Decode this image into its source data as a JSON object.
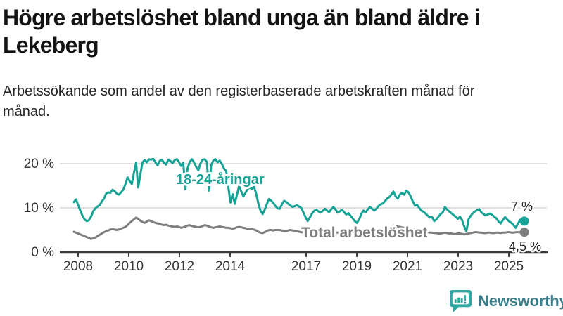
{
  "header": {
    "title": "Högre arbetslöshet bland unga än bland äldre i Lekeberg",
    "subtitle": "Arbetssökande som andel av den registerbaserade arbetskraften månad för månad."
  },
  "chart_data": {
    "type": "line",
    "unit": "percent of registered labour force",
    "frequency": "monthly",
    "x_start": "2008-01",
    "x_end": "2025-07",
    "ylim": [
      0,
      22
    ],
    "grid": "horizontal",
    "legend": "inline-labels",
    "yticks": [
      {
        "value": 0,
        "label": "0 %"
      },
      {
        "value": 10,
        "label": "10 %"
      },
      {
        "value": 20,
        "label": "20 %"
      }
    ],
    "xticks": [
      {
        "year": 2008,
        "label": "2008"
      },
      {
        "year": 2010,
        "label": "2010"
      },
      {
        "year": 2012,
        "label": "2012"
      },
      {
        "year": 2014,
        "label": "2014"
      },
      {
        "year": 2017,
        "label": "2017"
      },
      {
        "year": 2019,
        "label": "2019"
      },
      {
        "year": 2021,
        "label": "2021"
      },
      {
        "year": 2023,
        "label": "2023"
      },
      {
        "year": 2025,
        "label": "2025"
      }
    ],
    "series": [
      {
        "id": "young",
        "name": "18-24-åringar",
        "color": "#16a295",
        "end_label": "7 %",
        "end_value": 7.0,
        "values": [
          11.3,
          11.9,
          10.6,
          9.4,
          8.2,
          7.4,
          7.0,
          7.2,
          8.0,
          9.2,
          9.9,
          10.3,
          10.6,
          11.4,
          12.1,
          13.2,
          13.5,
          13.4,
          14.1,
          13.8,
          13.2,
          13.0,
          13.5,
          14.1,
          15.3,
          16.9,
          16.1,
          15.4,
          17.9,
          20.2,
          14.6,
          17.6,
          20.3,
          20.8,
          20.3,
          21.0,
          20.9,
          21.1,
          20.3,
          19.6,
          20.6,
          20.9,
          20.2,
          19.8,
          20.9,
          20.6,
          20.1,
          20.8,
          21.0,
          20.4,
          19.5,
          20.2,
          14.2,
          18.9,
          20.4,
          21.0,
          20.3,
          19.3,
          18.5,
          20.0,
          20.9,
          21.0,
          20.4,
          13.9,
          19.6,
          20.7,
          21.0,
          20.3,
          20.7,
          19.9,
          18.9,
          18.4,
          14.8,
          11.2,
          13.1,
          10.9,
          12.9,
          14.9,
          13.8,
          12.6,
          13.4,
          14.2,
          14.6,
          14.3,
          14.8,
          13.2,
          11.0,
          9.4,
          8.6,
          9.6,
          10.9,
          12.0,
          11.6,
          11.1,
          10.4,
          9.9,
          9.8,
          10.8,
          11.6,
          11.3,
          10.9,
          10.5,
          10.2,
          10.4,
          10.6,
          10.3,
          10.0,
          9.0,
          7.9,
          7.0,
          7.8,
          8.7,
          9.3,
          9.6,
          9.2,
          8.9,
          9.3,
          9.8,
          9.4,
          9.0,
          9.7,
          10.2,
          9.6,
          8.9,
          9.2,
          9.6,
          9.0,
          8.5,
          8.8,
          8.2,
          7.6,
          7.0,
          6.6,
          7.4,
          8.6,
          9.4,
          9.0,
          9.6,
          10.2,
          9.8,
          9.4,
          9.8,
          10.4,
          10.8,
          11.0,
          11.5,
          12.1,
          12.4,
          13.0,
          13.7,
          12.6,
          12.1,
          13.0,
          13.4,
          13.0,
          13.9,
          13.5,
          12.6,
          11.5,
          10.5,
          10.7,
          10.0,
          9.4,
          9.1,
          8.7,
          8.2,
          7.8,
          7.9,
          7.0,
          7.4,
          8.0,
          8.6,
          9.0,
          10.2,
          9.6,
          9.2,
          8.8,
          8.4,
          8.0,
          7.5,
          8.0,
          7.2,
          5.8,
          4.7,
          7.4,
          8.2,
          8.8,
          9.2,
          9.5,
          9.7,
          9.0,
          8.6,
          8.3,
          8.5,
          8.7,
          8.4,
          8.0,
          7.6,
          6.9,
          6.5,
          7.2,
          7.9,
          7.4,
          6.9,
          6.6,
          6.1,
          5.5,
          6.4,
          7.3,
          7.2,
          7.0
        ]
      },
      {
        "id": "total",
        "name": "Total arbetslöshet",
        "color": "#7e7e7e",
        "end_label": "4,5 %",
        "end_value": 4.5,
        "values": [
          4.6,
          4.4,
          4.2,
          4.0,
          3.8,
          3.6,
          3.4,
          3.2,
          3.0,
          3.1,
          3.3,
          3.6,
          3.9,
          4.2,
          4.5,
          4.7,
          4.9,
          5.1,
          5.2,
          5.1,
          5.0,
          5.1,
          5.3,
          5.5,
          5.7,
          6.1,
          6.6,
          7.0,
          7.4,
          7.8,
          7.5,
          7.1,
          6.8,
          6.6,
          6.9,
          7.2,
          7.0,
          6.8,
          6.6,
          6.5,
          6.4,
          6.2,
          6.1,
          6.2,
          6.0,
          5.9,
          5.8,
          5.7,
          5.8,
          5.7,
          5.5,
          5.6,
          5.8,
          6.0,
          6.1,
          5.9,
          5.8,
          5.7,
          5.6,
          5.7,
          5.9,
          6.1,
          6.0,
          5.8,
          5.6,
          5.5,
          5.6,
          5.7,
          5.8,
          5.7,
          5.6,
          5.5,
          5.5,
          5.4,
          5.3,
          5.4,
          5.6,
          5.7,
          5.6,
          5.5,
          5.4,
          5.3,
          5.2,
          5.2,
          5.1,
          4.9,
          4.6,
          4.4,
          4.3,
          4.5,
          4.8,
          5.0,
          5.0,
          4.9,
          5.0,
          5.0,
          5.0,
          4.9,
          4.8,
          4.8,
          4.9,
          5.0,
          4.9,
          4.8,
          4.7,
          4.6,
          4.5,
          4.4,
          4.5,
          4.6,
          4.6,
          4.7,
          4.8,
          4.8,
          4.7,
          4.6,
          4.6,
          4.7,
          4.7,
          4.6,
          4.6,
          4.5,
          4.4,
          4.4,
          4.5,
          4.6,
          4.5,
          4.4,
          4.4,
          4.5,
          4.5,
          4.6,
          4.6,
          4.7,
          4.8,
          4.8,
          4.9,
          5.0,
          5.0,
          4.9,
          4.9,
          5.0,
          5.1,
          5.2,
          5.3,
          5.4,
          5.6,
          5.8,
          5.9,
          6.0,
          5.9,
          5.8,
          5.7,
          5.6,
          5.5,
          5.5,
          5.4,
          5.3,
          5.2,
          5.1,
          5.0,
          4.9,
          4.8,
          4.7,
          4.6,
          4.5,
          4.4,
          4.4,
          4.3,
          4.3,
          4.2,
          4.2,
          4.3,
          4.4,
          4.3,
          4.2,
          4.2,
          4.1,
          4.1,
          4.2,
          4.2,
          4.1,
          4.0,
          4.1,
          4.2,
          4.3,
          4.4,
          4.5,
          4.5,
          4.4,
          4.4,
          4.3,
          4.3,
          4.4,
          4.4,
          4.3,
          4.3,
          4.4,
          4.4,
          4.3,
          4.4,
          4.4,
          4.5,
          4.5,
          4.4,
          4.4,
          4.5,
          4.5,
          4.5,
          4.5,
          4.5
        ]
      }
    ]
  },
  "logo": {
    "text": "Newsworthy"
  },
  "colors": {
    "accent_teal": "#16a295",
    "series_gray": "#7e7e7e",
    "grid": "#cdcdcd",
    "axis": "#3c3c3c",
    "tick_text": "#333333",
    "end_label_text": "#1f1f1f",
    "logo_icon": "#2fa9a2",
    "logo_text": "#3b7e8b"
  }
}
